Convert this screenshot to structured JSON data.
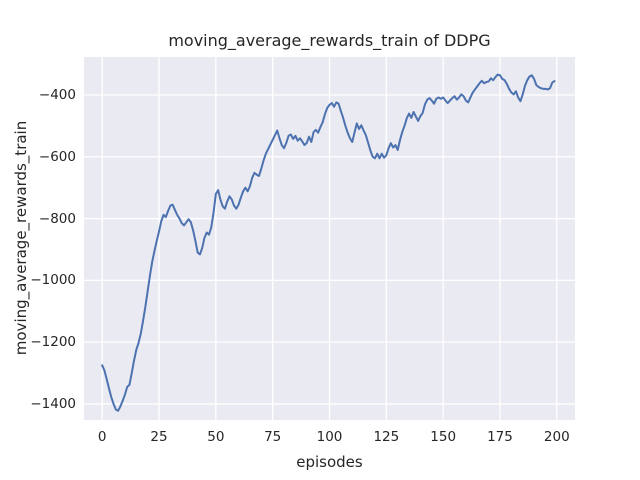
{
  "figure": {
    "title": "moving_average_rewards_train of DDPG",
    "xlabel": "episodes",
    "ylabel": "moving_average_rewards_train"
  },
  "chart_data": {
    "type": "line",
    "title": "moving_average_rewards_train of DDPG",
    "xlabel": "episodes",
    "ylabel": "moving_average_rewards_train",
    "grid": true,
    "legend_position": "none",
    "plot_background": "#eaeaf2",
    "grid_color": "#ffffff",
    "text_color": "#262626",
    "xlim": [
      -8,
      208
    ],
    "ylim": [
      -1452,
      -277
    ],
    "xticks": {
      "values": [
        0,
        25,
        50,
        75,
        100,
        125,
        150,
        175,
        200
      ],
      "labels": [
        "0",
        "25",
        "50",
        "75",
        "100",
        "125",
        "150",
        "175",
        "200"
      ]
    },
    "yticks": {
      "values": [
        -400,
        -600,
        -800,
        -1000,
        -1200,
        -1400
      ],
      "labels": [
        "−400",
        "−600",
        "−800",
        "−1000",
        "−1200",
        "−1400"
      ]
    },
    "x_start": 0,
    "x_step": 1,
    "series": [
      {
        "name": "moving_average_rewards_train",
        "color": "#4c72b0",
        "values": [
          -1275,
          -1292,
          -1320,
          -1350,
          -1378,
          -1400,
          -1418,
          -1422,
          -1408,
          -1390,
          -1370,
          -1345,
          -1338,
          -1300,
          -1260,
          -1225,
          -1202,
          -1172,
          -1130,
          -1085,
          -1035,
          -985,
          -940,
          -905,
          -872,
          -842,
          -808,
          -788,
          -795,
          -775,
          -758,
          -755,
          -772,
          -788,
          -800,
          -815,
          -822,
          -812,
          -802,
          -812,
          -838,
          -872,
          -910,
          -916,
          -895,
          -862,
          -845,
          -852,
          -828,
          -780,
          -720,
          -708,
          -738,
          -760,
          -768,
          -745,
          -728,
          -738,
          -758,
          -768,
          -755,
          -732,
          -712,
          -700,
          -712,
          -695,
          -668,
          -652,
          -658,
          -662,
          -638,
          -612,
          -590,
          -575,
          -560,
          -545,
          -530,
          -515,
          -540,
          -562,
          -572,
          -555,
          -532,
          -528,
          -542,
          -532,
          -548,
          -540,
          -550,
          -562,
          -555,
          -535,
          -552,
          -520,
          -513,
          -522,
          -504,
          -488,
          -462,
          -442,
          -432,
          -426,
          -438,
          -424,
          -428,
          -452,
          -474,
          -500,
          -522,
          -540,
          -552,
          -522,
          -492,
          -510,
          -498,
          -515,
          -530,
          -555,
          -580,
          -600,
          -605,
          -590,
          -605,
          -590,
          -603,
          -595,
          -572,
          -556,
          -570,
          -562,
          -578,
          -546,
          -520,
          -500,
          -475,
          -460,
          -474,
          -455,
          -470,
          -484,
          -468,
          -458,
          -430,
          -415,
          -410,
          -418,
          -428,
          -412,
          -408,
          -412,
          -408,
          -418,
          -426,
          -418,
          -410,
          -404,
          -415,
          -408,
          -398,
          -404,
          -418,
          -424,
          -408,
          -392,
          -382,
          -372,
          -362,
          -354,
          -362,
          -358,
          -356,
          -346,
          -352,
          -342,
          -334,
          -336,
          -348,
          -352,
          -364,
          -380,
          -392,
          -398,
          -388,
          -408,
          -420,
          -398,
          -370,
          -352,
          -340,
          -336,
          -348,
          -368,
          -374,
          -378,
          -380,
          -380,
          -382,
          -378,
          -360,
          -355
        ]
      }
    ]
  }
}
